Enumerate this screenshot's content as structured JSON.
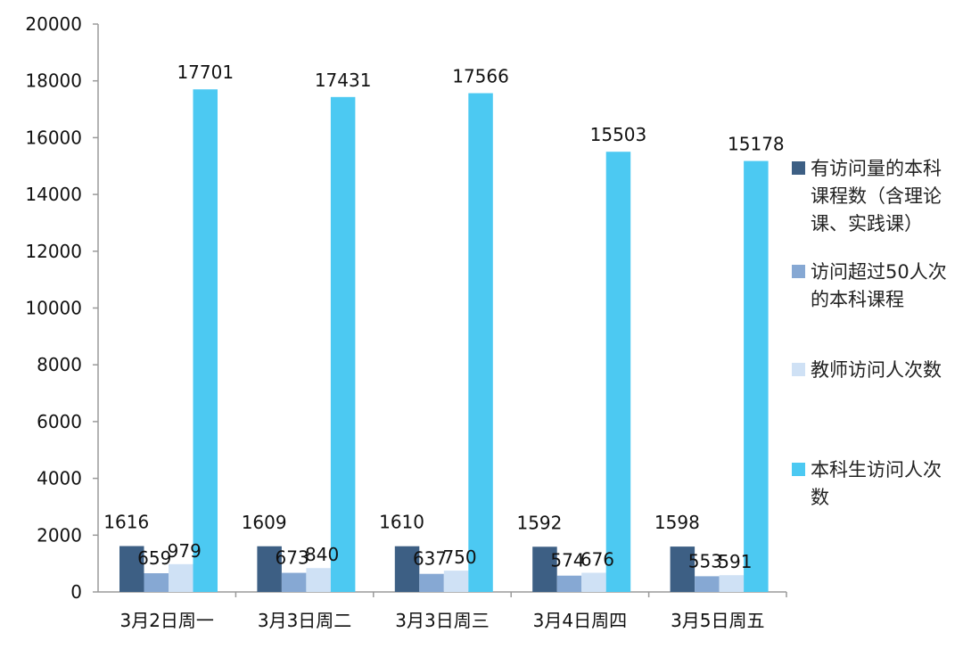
{
  "chart_data": {
    "type": "bar",
    "categories": [
      "3月2日周一",
      "3月3日周二",
      "3月3日周三",
      "3月4日周四",
      "3月5日周五"
    ],
    "series": [
      {
        "name": "有访问量的本科课程数（含理论课、实践课）",
        "color": "#3d5f84",
        "values": [
          1616,
          1609,
          1610,
          1592,
          1598
        ]
      },
      {
        "name": "访问超过50人次的本科课程",
        "color": "#86a8d3",
        "values": [
          659,
          673,
          637,
          574,
          553
        ]
      },
      {
        "name": "教师访问人次数",
        "color": "#cfe1f5",
        "values": [
          979,
          840,
          750,
          676,
          591
        ]
      },
      {
        "name": "本科生访问人次数",
        "color": "#4cc9f2",
        "values": [
          17701,
          17431,
          17566,
          15503,
          15178
        ]
      }
    ],
    "ylim": [
      0,
      20000
    ],
    "yticks": [
      "0",
      "2000",
      "4000",
      "6000",
      "8000",
      "10000",
      "12000",
      "14000",
      "16000",
      "18000",
      "20000"
    ],
    "legend_position": "right",
    "grid": false
  }
}
